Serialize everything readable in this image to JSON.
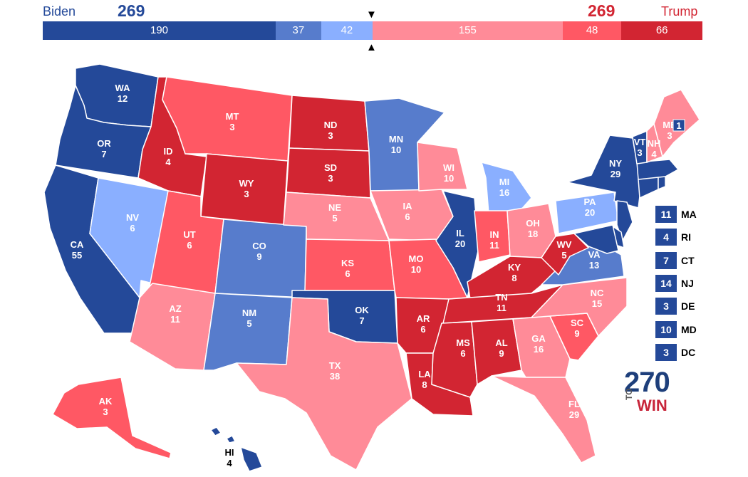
{
  "header": {
    "biden": {
      "name": "Biden",
      "votes": "269",
      "color": "#244999"
    },
    "trump": {
      "name": "Trump",
      "votes": "269",
      "color": "#d22532"
    }
  },
  "bar": [
    {
      "label": "190",
      "value": 190,
      "color": "#244999",
      "category": "safe-dem"
    },
    {
      "label": "37",
      "value": 37,
      "color": "#577ccc",
      "category": "likely-dem"
    },
    {
      "label": "42",
      "value": 42,
      "color": "#8aafff",
      "category": "lean-dem"
    },
    {
      "label": "155",
      "value": 155,
      "color": "#ff8b98",
      "category": "lean-rep"
    },
    {
      "label": "48",
      "value": 48,
      "color": "#ff5864",
      "category": "likely-rep"
    },
    {
      "label": "66",
      "value": 66,
      "color": "#d22532",
      "category": "safe-rep"
    }
  ],
  "markers": {
    "top": "▼",
    "bottom": "▲"
  },
  "colors": {
    "safe-dem": "#244999",
    "likely-dem": "#577ccc",
    "lean-dem": "#8aafff",
    "lean-rep": "#ff8b98",
    "likely-rep": "#ff5864",
    "safe-rep": "#d22532"
  },
  "states": [
    {
      "abbr": "WA",
      "ev": "12",
      "category": "safe-dem"
    },
    {
      "abbr": "OR",
      "ev": "7",
      "category": "safe-dem"
    },
    {
      "abbr": "CA",
      "ev": "55",
      "category": "safe-dem"
    },
    {
      "abbr": "NV",
      "ev": "6",
      "category": "lean-dem"
    },
    {
      "abbr": "ID",
      "ev": "4",
      "category": "safe-rep"
    },
    {
      "abbr": "MT",
      "ev": "3",
      "category": "likely-rep"
    },
    {
      "abbr": "WY",
      "ev": "3",
      "category": "safe-rep"
    },
    {
      "abbr": "UT",
      "ev": "6",
      "category": "likely-rep"
    },
    {
      "abbr": "AZ",
      "ev": "11",
      "category": "lean-rep"
    },
    {
      "abbr": "CO",
      "ev": "9",
      "category": "likely-dem"
    },
    {
      "abbr": "NM",
      "ev": "5",
      "category": "likely-dem"
    },
    {
      "abbr": "ND",
      "ev": "3",
      "category": "safe-rep"
    },
    {
      "abbr": "SD",
      "ev": "3",
      "category": "safe-rep"
    },
    {
      "abbr": "NE",
      "ev": "5",
      "category": "lean-rep"
    },
    {
      "abbr": "KS",
      "ev": "6",
      "category": "likely-rep"
    },
    {
      "abbr": "OK",
      "ev": "7",
      "category": "safe-dem"
    },
    {
      "abbr": "TX",
      "ev": "38",
      "category": "lean-rep"
    },
    {
      "abbr": "MN",
      "ev": "10",
      "category": "likely-dem"
    },
    {
      "abbr": "IA",
      "ev": "6",
      "category": "lean-rep"
    },
    {
      "abbr": "MO",
      "ev": "10",
      "category": "likely-rep"
    },
    {
      "abbr": "AR",
      "ev": "6",
      "category": "safe-rep"
    },
    {
      "abbr": "LA",
      "ev": "8",
      "category": "safe-rep"
    },
    {
      "abbr": "WI",
      "ev": "10",
      "category": "lean-rep"
    },
    {
      "abbr": "IL",
      "ev": "20",
      "category": "safe-dem"
    },
    {
      "abbr": "MI",
      "ev": "16",
      "category": "lean-dem"
    },
    {
      "abbr": "IN",
      "ev": "11",
      "category": "likely-rep"
    },
    {
      "abbr": "OH",
      "ev": "18",
      "category": "lean-rep"
    },
    {
      "abbr": "KY",
      "ev": "8",
      "category": "safe-rep"
    },
    {
      "abbr": "TN",
      "ev": "11",
      "category": "safe-rep"
    },
    {
      "abbr": "MS",
      "ev": "6",
      "category": "safe-rep"
    },
    {
      "abbr": "AL",
      "ev": "9",
      "category": "safe-rep"
    },
    {
      "abbr": "GA",
      "ev": "16",
      "category": "lean-rep"
    },
    {
      "abbr": "FL",
      "ev": "29",
      "category": "lean-rep"
    },
    {
      "abbr": "SC",
      "ev": "9",
      "category": "likely-rep"
    },
    {
      "abbr": "NC",
      "ev": "15",
      "category": "lean-rep"
    },
    {
      "abbr": "VA",
      "ev": "13",
      "category": "likely-dem"
    },
    {
      "abbr": "WV",
      "ev": "5",
      "category": "safe-rep"
    },
    {
      "abbr": "PA",
      "ev": "20",
      "category": "lean-dem"
    },
    {
      "abbr": "NY",
      "ev": "29",
      "category": "safe-dem"
    },
    {
      "abbr": "VT",
      "ev": "3",
      "category": "safe-dem"
    },
    {
      "abbr": "NH",
      "ev": "4",
      "category": "lean-rep"
    },
    {
      "abbr": "ME",
      "ev": "3",
      "category": "lean-rep"
    },
    {
      "abbr": "AK",
      "ev": "3",
      "category": "likely-rep"
    },
    {
      "abbr": "HI",
      "ev": "4",
      "category": "safe-dem"
    }
  ],
  "maine_district": {
    "ev": "1",
    "category": "safe-dem"
  },
  "small_states": [
    {
      "abbr": "MA",
      "ev": "11"
    },
    {
      "abbr": "RI",
      "ev": "4"
    },
    {
      "abbr": "CT",
      "ev": "7"
    },
    {
      "abbr": "NJ",
      "ev": "14"
    },
    {
      "abbr": "DE",
      "ev": "3"
    },
    {
      "abbr": "MD",
      "ev": "10"
    },
    {
      "abbr": "DC",
      "ev": "3"
    }
  ],
  "logo": {
    "number": "270",
    "to": "TO",
    "win": "WIN"
  }
}
